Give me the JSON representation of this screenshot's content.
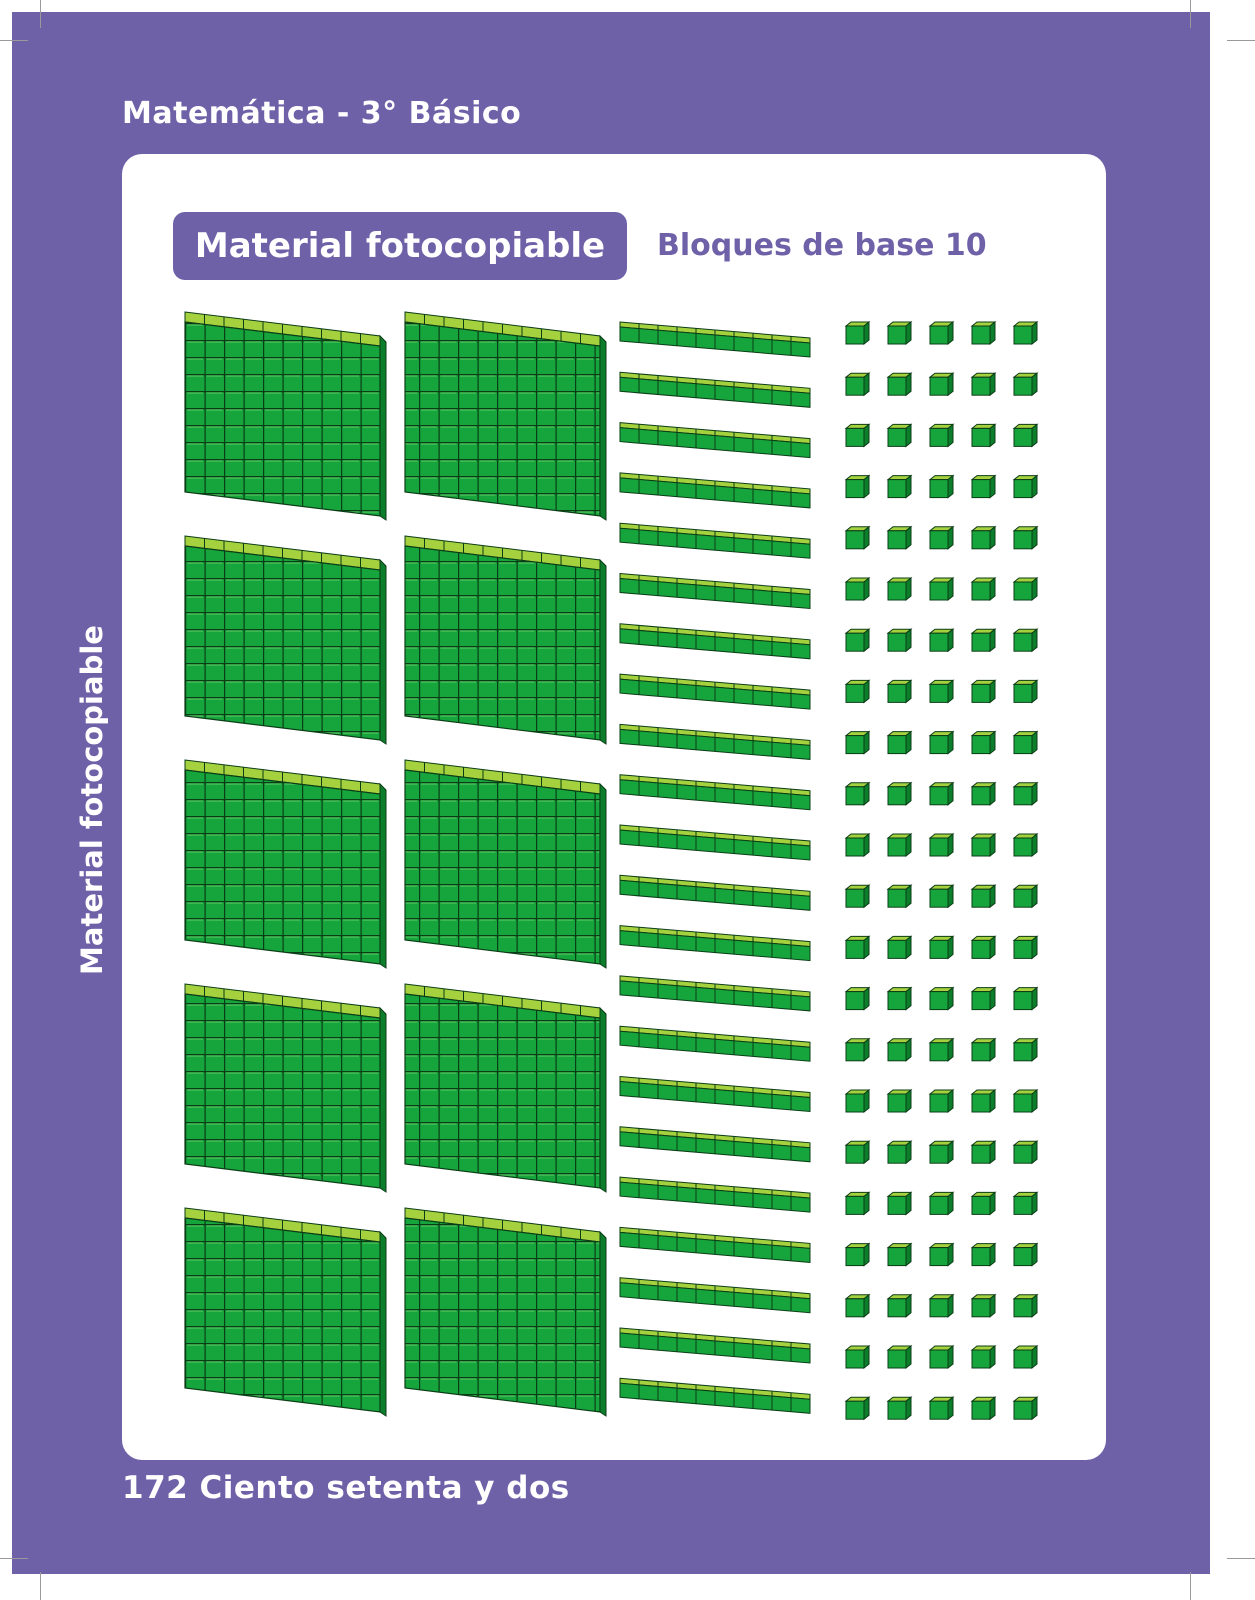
{
  "header": {
    "title": "Matemática - 3° Básico"
  },
  "badge": {
    "label": "Material fotocopiable"
  },
  "subtitle": "Bloques de base 10",
  "side_label": "Material fotocopiable",
  "footer": {
    "page_text": "172 Ciento setenta y dos"
  },
  "colors": {
    "page_background": "#6f61a8",
    "panel": "#ffffff",
    "cube_front": "#15a53c",
    "cube_top": "#a6d13f",
    "cube_side": "#0c7d2b",
    "cube_outline": "#0b3d16"
  },
  "blocks": {
    "flats": {
      "count": 10,
      "cubes_per_side": 10
    },
    "rods": {
      "count": 22,
      "cubes_per_rod": 10
    },
    "units": {
      "count": 110
    }
  }
}
